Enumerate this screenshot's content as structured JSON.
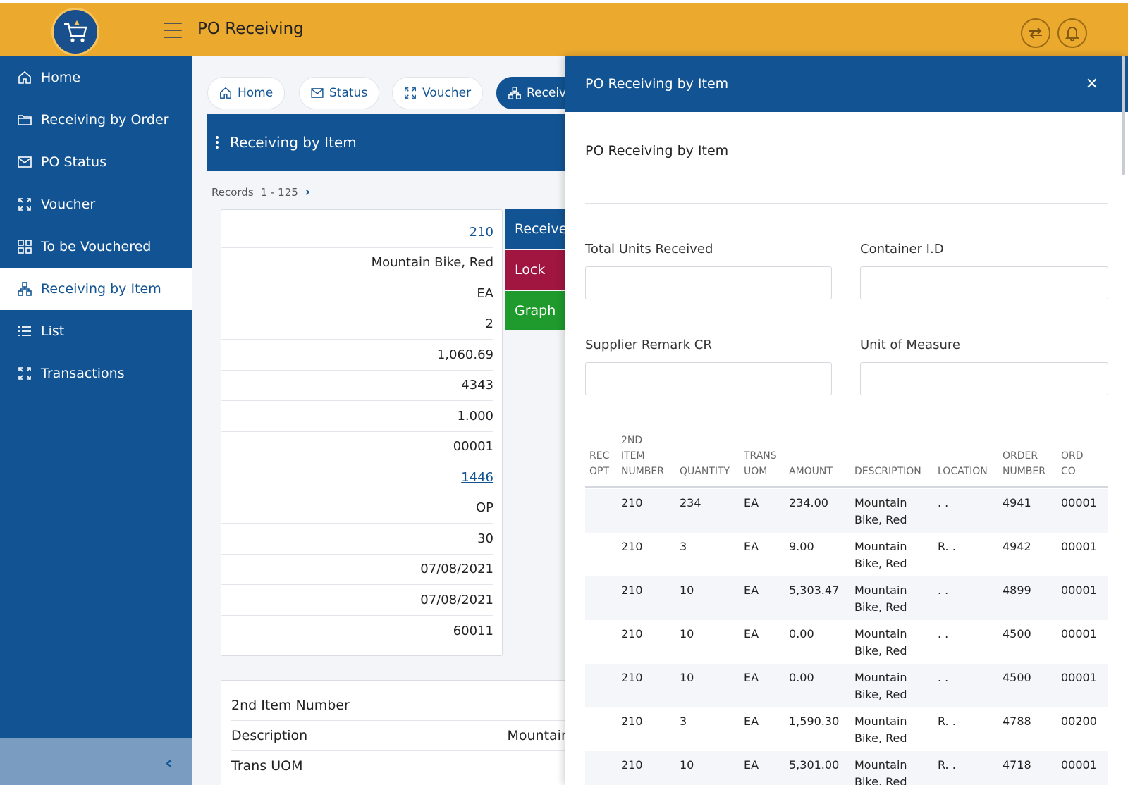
{
  "header": {
    "title": "PO Receiving"
  },
  "sidebar": {
    "items": [
      {
        "label": "Home",
        "icon": "home-icon"
      },
      {
        "label": "Receiving by Order",
        "icon": "folder-icon"
      },
      {
        "label": "PO Status",
        "icon": "mail-icon"
      },
      {
        "label": "Voucher",
        "icon": "expand-icon"
      },
      {
        "label": "To be Vouchered",
        "icon": "grid-icon"
      },
      {
        "label": "Receiving by Item",
        "icon": "hierarchy-icon"
      },
      {
        "label": "List",
        "icon": "list-icon"
      },
      {
        "label": "Transactions",
        "icon": "expand-icon"
      }
    ]
  },
  "nav_pills": [
    {
      "label": "Home"
    },
    {
      "label": "Status"
    },
    {
      "label": "Voucher"
    },
    {
      "label": "Receivi"
    }
  ],
  "panel": {
    "title": "Receiving by Item"
  },
  "records": {
    "label": "Records",
    "range": "1 - 125"
  },
  "detail_values": [
    "210",
    "Mountain Bike, Red",
    "EA",
    "2",
    "1,060.69",
    "4343",
    "1.000",
    "00001",
    "1446",
    "OP",
    "30",
    "07/08/2021",
    "07/08/2021",
    "60011"
  ],
  "actions": {
    "receive": "Receive",
    "lock": "Lock",
    "graph": "Graph"
  },
  "detail2": [
    {
      "label": "2nd Item Number",
      "value": ""
    },
    {
      "label": "Description",
      "value": "Mountain"
    },
    {
      "label": "Trans UOM",
      "value": ""
    }
  ],
  "drawer": {
    "title": "PO Receiving by Item",
    "form_title": "PO Receiving by Item",
    "fields": {
      "total_units": "Total Units Received",
      "container_id": "Container I.D",
      "supplier_remark": "Supplier Remark CR",
      "uom": "Unit of Measure"
    },
    "table": {
      "headers": {
        "rec_a": "REC",
        "rec_b": "OPT",
        "item_a": "2ND",
        "item_b": "ITEM",
        "item_c": "NUMBER",
        "qty": "QUANTITY",
        "uom_a": "TRANS",
        "uom_b": "UOM",
        "amount": "AMOUNT",
        "desc": "DESCRIPTION",
        "loc": "LOCATION",
        "order_a": "ORDER",
        "order_b": "NUMBER",
        "ordco_a": "ORD",
        "ordco_b": "CO"
      },
      "rows": [
        {
          "item": "210",
          "qty": "234",
          "uom": "EA",
          "amount": "234.00",
          "desc1": "Mountain",
          "desc2": "Bike, Red",
          "loc": ". .",
          "order": "4941",
          "co": "00001"
        },
        {
          "item": "210",
          "qty": "3",
          "uom": "EA",
          "amount": "9.00",
          "desc1": "Mountain",
          "desc2": "Bike, Red",
          "loc": "R. .",
          "order": "4942",
          "co": "00001"
        },
        {
          "item": "210",
          "qty": "10",
          "uom": "EA",
          "amount": "5,303.47",
          "desc1": "Mountain",
          "desc2": "Bike, Red",
          "loc": ". .",
          "order": "4899",
          "co": "00001"
        },
        {
          "item": "210",
          "qty": "10",
          "uom": "EA",
          "amount": "0.00",
          "desc1": "Mountain",
          "desc2": "Bike, Red",
          "loc": ". .",
          "order": "4500",
          "co": "00001"
        },
        {
          "item": "210",
          "qty": "10",
          "uom": "EA",
          "amount": "0.00",
          "desc1": "Mountain",
          "desc2": "Bike, Red",
          "loc": ". .",
          "order": "4500",
          "co": "00001"
        },
        {
          "item": "210",
          "qty": "3",
          "uom": "EA",
          "amount": "1,590.30",
          "desc1": "Mountain",
          "desc2": "Bike, Red",
          "loc": "R. .",
          "order": "4788",
          "co": "00200"
        },
        {
          "item": "210",
          "qty": "10",
          "uom": "EA",
          "amount": "5,301.00",
          "desc1": "Mountain",
          "desc2": "Bike, Red",
          "loc": "R. .",
          "order": "4718",
          "co": "00001"
        }
      ]
    }
  },
  "colors": {
    "brand_blue": "#125493",
    "header_orange": "#eba92e",
    "lock_red": "#a01640",
    "graph_green": "#1f9a2c"
  }
}
